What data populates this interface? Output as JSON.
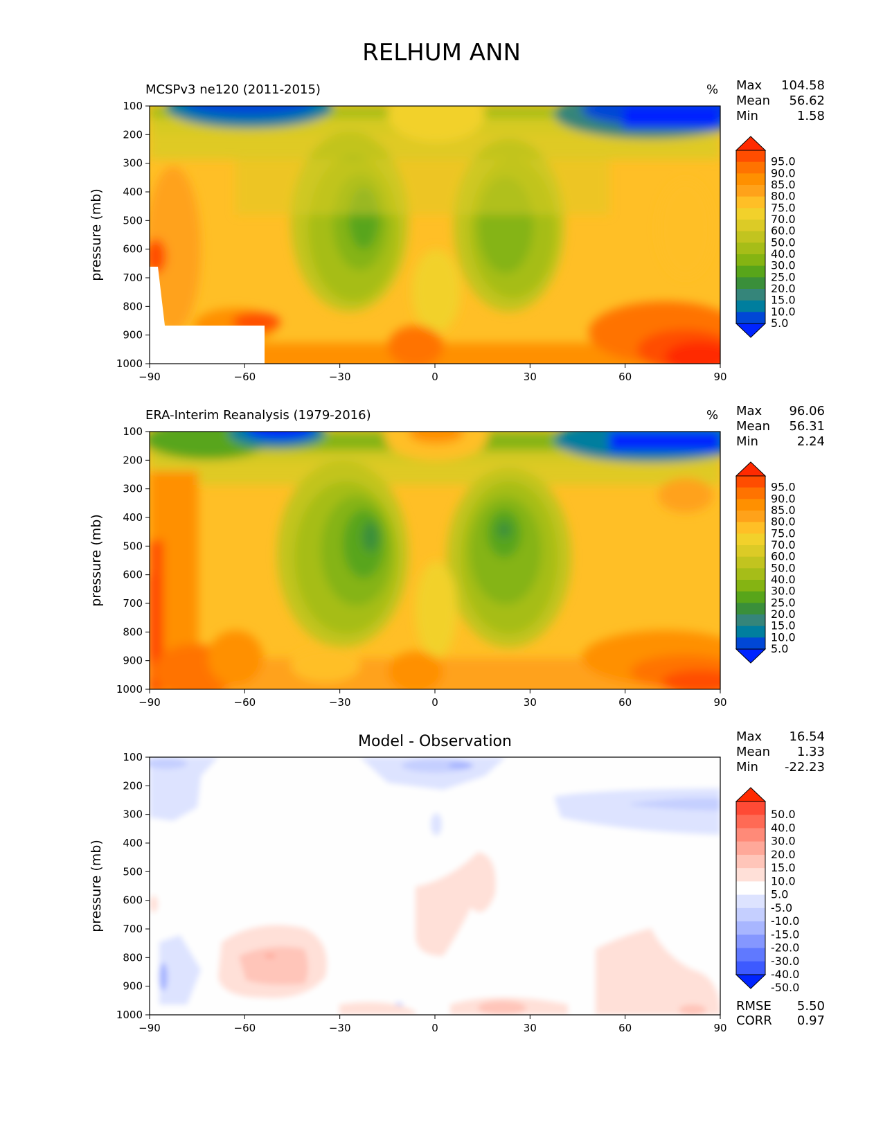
{
  "title": "RELHUM ANN",
  "chart_data": [
    {
      "type": "heatmap",
      "title": "MCSPv3 ne120 (2011-2015)",
      "units": "%",
      "ylabel": "pressure (mb)",
      "xlabel": "",
      "x_ticks": [
        "−90",
        "−60",
        "−30",
        "0",
        "30",
        "60",
        "90"
      ],
      "y_ticks": [
        "100",
        "200",
        "300",
        "400",
        "500",
        "600",
        "700",
        "800",
        "900",
        "1000"
      ],
      "xlim": [
        -90,
        90
      ],
      "ylim": [
        1000,
        100
      ],
      "stats": {
        "max_label": "Max",
        "max": "104.58",
        "mean_label": "Mean",
        "mean": "56.62",
        "min_label": "Min",
        "min": "1.58"
      },
      "colorbar": {
        "labels": [
          "95.0",
          "90.0",
          "85.0",
          "80.0",
          "75.0",
          "70.0",
          "60.0",
          "50.0",
          "40.0",
          "30.0",
          "25.0",
          "20.0",
          "15.0",
          "10.0",
          "5.0"
        ],
        "colors": [
          "#ff2a00",
          "#ff4d00",
          "#ff7300",
          "#ff9000",
          "#ffa21a",
          "#ffbf26",
          "#f2d12b",
          "#dccb26",
          "#c2c41f",
          "#a6bd18",
          "#85b412",
          "#58a51a",
          "#3a8f3a",
          "#35857a",
          "#007e9e",
          "#0047d6",
          "#0024ff"
        ]
      },
      "source_levels": [
        5,
        10,
        15,
        20,
        25,
        30,
        40,
        50,
        60,
        70,
        75,
        80,
        85,
        90,
        95,
        100
      ],
      "source_colors": [
        "#0024ff",
        "#0047d6",
        "#007e9e",
        "#35857a",
        "#3a8f3a",
        "#58a51a",
        "#85b412",
        "#a6bd18",
        "#c2c41f",
        "#dccb26",
        "#f2d12b",
        "#ffbf26",
        "#ffa21a",
        "#ff9000",
        "#ff7300",
        "#ff4d00",
        "#ff2a00"
      ]
    },
    {
      "type": "heatmap",
      "title": "ERA-Interim Reanalysis (1979-2016)",
      "units": "%",
      "ylabel": "pressure (mb)",
      "xlabel": "",
      "x_ticks": [
        "−90",
        "−60",
        "−30",
        "0",
        "30",
        "60",
        "90"
      ],
      "y_ticks": [
        "100",
        "200",
        "300",
        "400",
        "500",
        "600",
        "700",
        "800",
        "900",
        "1000"
      ],
      "xlim": [
        -90,
        90
      ],
      "ylim": [
        1000,
        100
      ],
      "stats": {
        "max_label": "Max",
        "max": "96.06",
        "mean_label": "Mean",
        "mean": "56.31",
        "min_label": "Min",
        "min": "2.24"
      },
      "colorbar": {
        "labels": [
          "95.0",
          "90.0",
          "85.0",
          "80.0",
          "75.0",
          "70.0",
          "60.0",
          "50.0",
          "40.0",
          "30.0",
          "25.0",
          "20.0",
          "15.0",
          "10.0",
          "5.0"
        ],
        "colors": [
          "#ff2a00",
          "#ff4d00",
          "#ff7300",
          "#ff9000",
          "#ffa21a",
          "#ffbf26",
          "#f2d12b",
          "#dccb26",
          "#c2c41f",
          "#a6bd18",
          "#85b412",
          "#58a51a",
          "#3a8f3a",
          "#35857a",
          "#007e9e",
          "#0047d6",
          "#0024ff"
        ]
      },
      "source_levels": [
        5,
        10,
        15,
        20,
        25,
        30,
        40,
        50,
        60,
        70,
        75,
        80,
        85,
        90,
        95,
        100
      ],
      "source_colors": [
        "#0024ff",
        "#0047d6",
        "#007e9e",
        "#35857a",
        "#3a8f3a",
        "#58a51a",
        "#85b412",
        "#a6bd18",
        "#c2c41f",
        "#dccb26",
        "#f2d12b",
        "#ffbf26",
        "#ffa21a",
        "#ff9000",
        "#ff7300",
        "#ff4d00",
        "#ff2a00"
      ]
    },
    {
      "type": "heatmap",
      "title": "Model - Observation",
      "units": "",
      "ylabel": "pressure (mb)",
      "xlabel": "",
      "x_ticks": [
        "−90",
        "−60",
        "−30",
        "0",
        "30",
        "60",
        "90"
      ],
      "y_ticks": [
        "100",
        "200",
        "300",
        "400",
        "500",
        "600",
        "700",
        "800",
        "900",
        "1000"
      ],
      "xlim": [
        -90,
        90
      ],
      "ylim": [
        1000,
        100
      ],
      "stats": {
        "max_label": "Max",
        "max": "16.54",
        "mean_label": "Mean",
        "mean": "1.33",
        "min_label": "Min",
        "min": "-22.23"
      },
      "rmse_label": "RMSE",
      "rmse": "5.50",
      "corr_label": "CORR",
      "corr": "0.97",
      "colorbar": {
        "labels": [
          "50.0",
          "40.0",
          "30.0",
          "20.0",
          "15.0",
          "10.0",
          "5.0",
          "-5.0",
          "-10.0",
          "-15.0",
          "-20.0",
          "-30.0",
          "-40.0",
          "-50.0"
        ],
        "colors": [
          "#ff2a00",
          "#ff4a35",
          "#ff6a55",
          "#ff8a78",
          "#ffa899",
          "#ffc5b9",
          "#ffe0d8",
          "#ffffff",
          "#dde3ff",
          "#c5cfff",
          "#a8b6ff",
          "#8597ff",
          "#6079ff",
          "#3d5aff",
          "#0024ff"
        ]
      },
      "source_levels": [
        -50,
        -40,
        -30,
        -20,
        -15,
        -10,
        -5,
        5,
        10,
        15,
        20,
        30,
        40,
        50
      ],
      "source_colors": [
        "#0024ff",
        "#3d5aff",
        "#6079ff",
        "#8597ff",
        "#a8b6ff",
        "#c5cfff",
        "#dde3ff",
        "#fefefe",
        "#ffe0d8",
        "#ffc5b9",
        "#ffa899",
        "#ff8a78",
        "#ff6a55",
        "#ff4a35",
        "#ff2a00"
      ]
    }
  ]
}
